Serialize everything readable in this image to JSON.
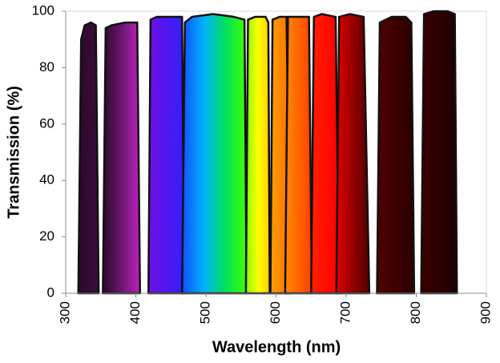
{
  "chart_data": {
    "type": "area",
    "x_label": "Wavelength (nm)",
    "y_label": "Transmission (%)",
    "xlim": [
      300,
      900
    ],
    "xticks": [
      300,
      400,
      500,
      600,
      700,
      800,
      900
    ],
    "ylim": [
      0,
      100
    ],
    "yticks": [
      0,
      20,
      40,
      60,
      80,
      100
    ],
    "grid": false,
    "outline_color": "#111111",
    "series": [
      {
        "colors": [
          "#2a0a2a",
          "#3c0c3c"
        ],
        "x": [
          318,
          322,
          327,
          336,
          343,
          347
        ],
        "values": [
          0,
          90,
          95,
          96,
          95,
          0
        ]
      },
      {
        "colors": [
          "#2a0a2a",
          "#6a1870",
          "#c020c0"
        ],
        "x": [
          353,
          357,
          365,
          385,
          402,
          406
        ],
        "values": [
          0,
          94,
          95,
          96,
          96,
          0
        ]
      },
      {
        "colors": [
          "#7010e0",
          "#3020ff"
        ],
        "x": [
          418,
          421,
          430,
          450,
          466,
          469
        ],
        "values": [
          0,
          97,
          98,
          98,
          98,
          0
        ]
      },
      {
        "colors": [
          "#1050ff",
          "#00b0ff",
          "#00e060",
          "#40ff00"
        ],
        "x": [
          466,
          470,
          480,
          510,
          540,
          555,
          558
        ],
        "values": [
          0,
          96,
          98,
          99,
          98,
          97,
          0
        ]
      },
      {
        "colors": [
          "#80ff00",
          "#ffff00",
          "#ffd000"
        ],
        "x": [
          557,
          560,
          570,
          585,
          589,
          591
        ],
        "values": [
          0,
          97,
          98,
          98,
          96,
          0
        ]
      },
      {
        "colors": [
          "#ffa000",
          "#ff7000"
        ],
        "x": [
          592,
          595,
          605,
          615,
          620
        ],
        "values": [
          0,
          97,
          98,
          98,
          0
        ]
      },
      {
        "colors": [
          "#ff8a00",
          "#ff4000"
        ],
        "x": [
          613,
          617,
          630,
          647,
          651
        ],
        "values": [
          0,
          98,
          98,
          98,
          0
        ]
      },
      {
        "colors": [
          "#ff2000",
          "#ff0000"
        ],
        "x": [
          650,
          654,
          665,
          685,
          690
        ],
        "values": [
          0,
          98,
          99,
          98,
          0
        ]
      },
      {
        "colors": [
          "#e00000",
          "#500000"
        ],
        "x": [
          686,
          690,
          705,
          725,
          733
        ],
        "values": [
          0,
          98,
          99,
          98,
          0
        ]
      },
      {
        "colors": [
          "#500000",
          "#2a0000"
        ],
        "x": [
          744,
          748,
          765,
          785,
          793,
          797
        ],
        "values": [
          0,
          96,
          98,
          98,
          96,
          0
        ]
      },
      {
        "colors": [
          "#3a0000",
          "#1e0000"
        ],
        "x": [
          807,
          811,
          825,
          845,
          855,
          858
        ],
        "values": [
          0,
          99,
          100,
          100,
          99,
          0
        ]
      }
    ]
  }
}
